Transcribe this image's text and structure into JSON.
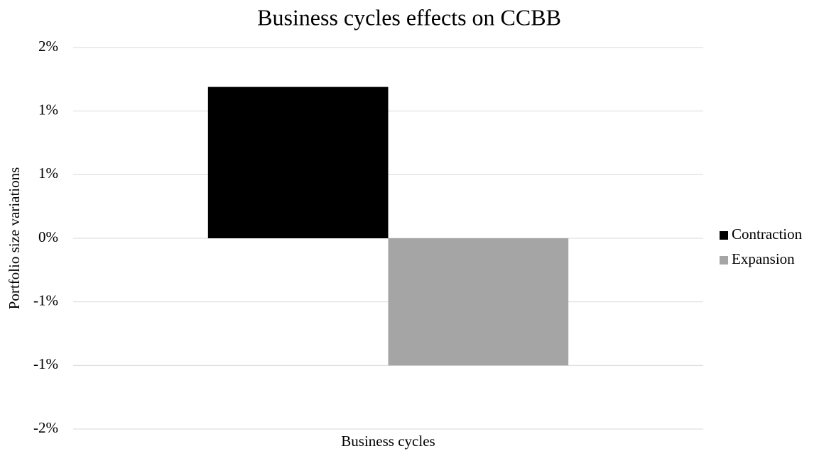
{
  "chart_data": {
    "type": "bar",
    "title": "Business cycles effects on CCBB",
    "y_axis_label": "Portfolio size variations",
    "categories": [
      "Business cycles"
    ],
    "series": [
      {
        "name": "Contraction",
        "color": "#000000",
        "values": [
          1.19
        ]
      },
      {
        "name": "Expansion",
        "color": "#a5a5a5",
        "values": [
          -1.0
        ]
      }
    ],
    "ylim": [
      -1.5,
      1.5
    ],
    "yticks": [
      {
        "value": -1.5,
        "label": "-2%"
      },
      {
        "value": -1.0,
        "label": "-1%"
      },
      {
        "value": -0.5,
        "label": "-1%"
      },
      {
        "value": 0,
        "label": "0%"
      },
      {
        "value": 0.5,
        "label": "1%"
      },
      {
        "value": 1.0,
        "label": "1%"
      },
      {
        "value": 1.5,
        "label": "2%"
      }
    ],
    "grid": true,
    "legend": "right"
  }
}
